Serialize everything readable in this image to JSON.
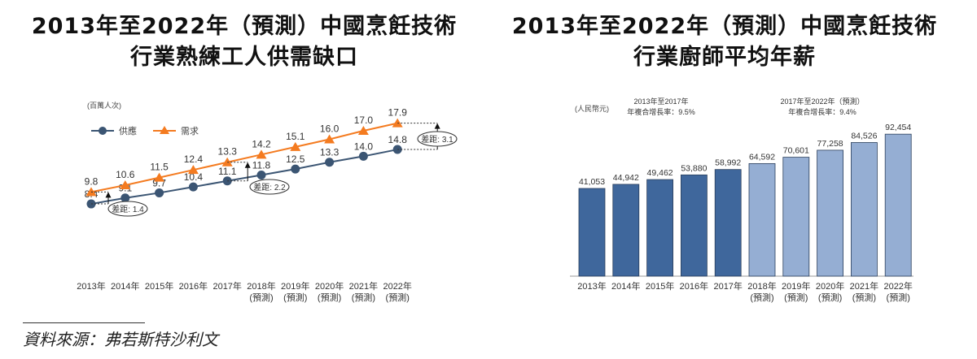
{
  "left_title": {
    "line1": "2013年至2022年（預測）中國烹飪技術",
    "line2": "行業熟練工人供需缺口"
  },
  "right_title": {
    "line1": "2013年至2022年（預測）中國烹飪技術",
    "line2": "行業廚師平均年薪"
  },
  "source": "資料來源：弗若斯特沙利文",
  "chart_data": [
    {
      "type": "line",
      "unit_label": "(百萬人次)",
      "categories": [
        [
          "2013年",
          ""
        ],
        [
          "2014年",
          ""
        ],
        [
          "2015年",
          ""
        ],
        [
          "2016年",
          ""
        ],
        [
          "2017年",
          ""
        ],
        [
          "2018年",
          "(預測)"
        ],
        [
          "2019年",
          "(預測)"
        ],
        [
          "2020年",
          "(預測)"
        ],
        [
          "2021年",
          "(預測)"
        ],
        [
          "2022年",
          "(預測)"
        ]
      ],
      "series": [
        {
          "name": "供應",
          "values": [
            8.4,
            9.1,
            9.7,
            10.4,
            11.1,
            11.8,
            12.5,
            13.3,
            14.0,
            14.8
          ],
          "color": "#3b5573",
          "marker": "circle"
        },
        {
          "name": "需求",
          "values": [
            9.8,
            10.6,
            11.5,
            12.4,
            13.3,
            14.2,
            15.1,
            16.0,
            17.0,
            17.9
          ],
          "color": "#f47b20",
          "marker": "triangle"
        }
      ],
      "legend": "top-left",
      "annotations": [
        {
          "year_index": 0,
          "text": "差距: 1.4"
        },
        {
          "year_index": 4,
          "text": "差距: 2.2"
        },
        {
          "year_index": 9,
          "text": "差距: 3.1"
        }
      ],
      "ylim": [
        0,
        19
      ],
      "grid": false
    },
    {
      "type": "bar",
      "unit_label": "(人民幣元)",
      "categories": [
        [
          "2013年",
          ""
        ],
        [
          "2014年",
          ""
        ],
        [
          "2015年",
          ""
        ],
        [
          "2016年",
          ""
        ],
        [
          "2017年",
          ""
        ],
        [
          "2018年",
          "(預測)"
        ],
        [
          "2019年",
          "(預測)"
        ],
        [
          "2020年",
          "(預測)"
        ],
        [
          "2021年",
          "(預測)"
        ],
        [
          "2022年",
          "(預測)"
        ]
      ],
      "values": [
        41053,
        44942,
        49462,
        53880,
        58992,
        64592,
        70601,
        77258,
        84526,
        92454
      ],
      "value_labels": [
        "41,053",
        "44,942",
        "49,462",
        "53,880",
        "58,992",
        "64,592",
        "70,601",
        "77,258",
        "84,526",
        "92,454"
      ],
      "colors": {
        "historical": "#3f679c",
        "forecast": "#95aed3"
      },
      "forecast_start_index": 5,
      "cagr_notes": [
        {
          "line1": "2013年至2017年",
          "line2": "年複合增長率：9.5%"
        },
        {
          "line1": "2017年至2022年（預測）",
          "line2": "年複合增長率：9.4%"
        }
      ],
      "grid": false
    }
  ]
}
